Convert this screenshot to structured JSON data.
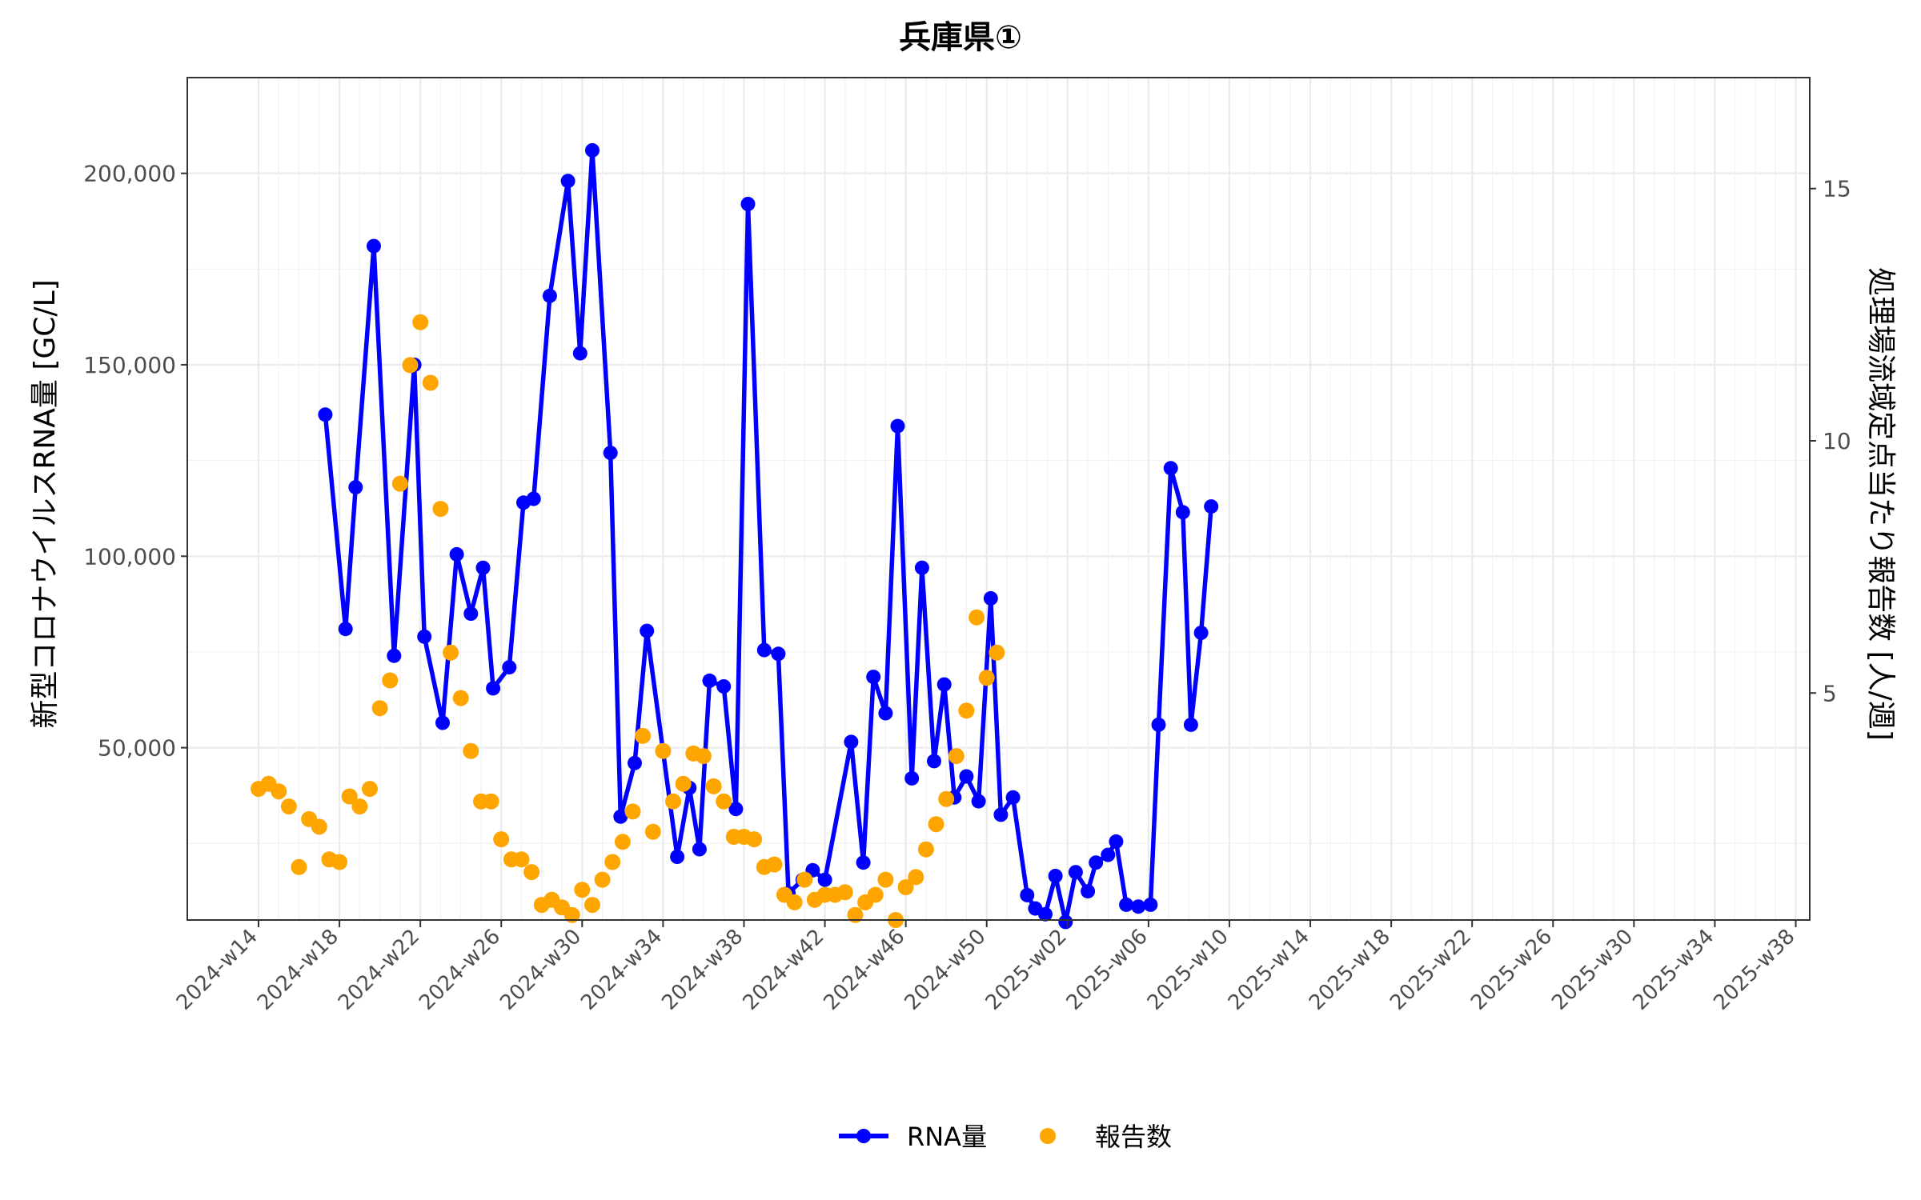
{
  "chart_data": {
    "type": "line",
    "title": "兵庫県①",
    "ylabel_left": "新型コロナウイルスRNA量 [GC/L]",
    "ylabel_right": "処理場流域定点当たり報告数 [人/週]",
    "ylim_left": [
      5000,
      225000
    ],
    "ylim_right": [
      0.5,
      17.2
    ],
    "yticks_left": [
      50000,
      100000,
      150000,
      200000
    ],
    "yticks_left_labels": [
      "50,000",
      "100,000",
      "150,000",
      "200,000"
    ],
    "yticks_right": [
      5,
      10,
      15
    ],
    "yticks_right_labels": [
      "5",
      "10",
      "15"
    ],
    "xticks": [
      "2024-w14",
      "2024-w18",
      "2024-w22",
      "2024-w26",
      "2024-w30",
      "2024-w34",
      "2024-w38",
      "2024-w42",
      "2024-w46",
      "2024-w50",
      "2025-w02",
      "2025-w06",
      "2025-w10",
      "2025-w14",
      "2025-w18",
      "2025-w22",
      "2025-w26",
      "2025-w30",
      "2025-w34",
      "2025-w38"
    ],
    "grid": true,
    "legend_position": "bottom",
    "series": [
      {
        "name": "RNA量",
        "type": "line",
        "axis": "left",
        "color": "#0000ff",
        "points": [
          [
            3.3,
            137000
          ],
          [
            4.3,
            81000
          ],
          [
            4.8,
            118000
          ],
          [
            5.7,
            181000
          ],
          [
            6.7,
            74000
          ],
          [
            7.7,
            150000
          ],
          [
            8.2,
            79000
          ],
          [
            9.1,
            56500
          ],
          [
            9.8,
            100500
          ],
          [
            10.5,
            85000
          ],
          [
            11.1,
            97000
          ],
          [
            11.6,
            65500
          ],
          [
            12.4,
            71000
          ],
          [
            13.1,
            114000
          ],
          [
            13.6,
            115000
          ],
          [
            14.4,
            168000
          ],
          [
            15.3,
            198000
          ],
          [
            15.9,
            153000
          ],
          [
            16.5,
            206000
          ],
          [
            17.4,
            127000
          ],
          [
            17.9,
            32000
          ],
          [
            18.6,
            46000
          ],
          [
            19.2,
            80500
          ],
          [
            20.7,
            21500
          ],
          [
            21.3,
            39500
          ],
          [
            21.8,
            23500
          ],
          [
            22.3,
            67500
          ],
          [
            23.0,
            66000
          ],
          [
            23.6,
            34000
          ],
          [
            24.2,
            192000
          ],
          [
            25.0,
            75500
          ],
          [
            25.7,
            74500
          ],
          [
            26.2,
            12000
          ],
          [
            26.9,
            15500
          ],
          [
            27.4,
            18000
          ],
          [
            28.0,
            15500
          ],
          [
            29.3,
            51500
          ],
          [
            29.9,
            20000
          ],
          [
            30.4,
            68500
          ],
          [
            31.0,
            59000
          ],
          [
            31.6,
            134000
          ],
          [
            32.3,
            42000
          ],
          [
            32.8,
            97000
          ],
          [
            33.4,
            46500
          ],
          [
            33.9,
            66500
          ],
          [
            34.4,
            37000
          ],
          [
            35.0,
            42500
          ],
          [
            35.6,
            36000
          ],
          [
            36.2,
            89000
          ],
          [
            36.7,
            32500
          ],
          [
            37.3,
            37000
          ],
          [
            38.0,
            11500
          ],
          [
            38.4,
            8000
          ],
          [
            38.9,
            6500
          ],
          [
            39.4,
            16500
          ],
          [
            39.9,
            4500
          ],
          [
            40.4,
            17500
          ],
          [
            41.0,
            12500
          ],
          [
            41.4,
            20000
          ],
          [
            42.0,
            22000
          ],
          [
            42.4,
            25500
          ],
          [
            42.9,
            9000
          ],
          [
            43.5,
            8500
          ],
          [
            44.1,
            9000
          ],
          [
            44.5,
            56000
          ],
          [
            45.1,
            123000
          ],
          [
            45.7,
            111500
          ],
          [
            46.1,
            56000
          ],
          [
            46.6,
            80000
          ],
          [
            47.1,
            113000
          ]
        ]
      },
      {
        "name": "報告数",
        "type": "scatter",
        "axis": "right",
        "color": "#ffa500",
        "points": [
          [
            0.0,
            3.1
          ],
          [
            0.5,
            3.2
          ],
          [
            1.0,
            3.05
          ],
          [
            1.5,
            2.75
          ],
          [
            2.0,
            1.55
          ],
          [
            2.5,
            2.5
          ],
          [
            3.0,
            2.35
          ],
          [
            3.5,
            1.7
          ],
          [
            4.0,
            1.65
          ],
          [
            4.5,
            2.95
          ],
          [
            5.0,
            2.75
          ],
          [
            5.5,
            3.1
          ],
          [
            6.0,
            4.7
          ],
          [
            6.5,
            5.25
          ],
          [
            7.0,
            9.15
          ],
          [
            7.5,
            11.5
          ],
          [
            8.0,
            12.35
          ],
          [
            8.5,
            11.15
          ],
          [
            9.0,
            8.65
          ],
          [
            9.5,
            5.8
          ],
          [
            10.0,
            4.9
          ],
          [
            10.5,
            3.85
          ],
          [
            11.0,
            2.85
          ],
          [
            11.5,
            2.85
          ],
          [
            12.0,
            2.1
          ],
          [
            12.5,
            1.7
          ],
          [
            13.0,
            1.7
          ],
          [
            13.5,
            1.45
          ],
          [
            14.0,
            0.8
          ],
          [
            14.5,
            0.9
          ],
          [
            15.0,
            0.75
          ],
          [
            15.5,
            0.6
          ],
          [
            16.0,
            1.1
          ],
          [
            16.5,
            0.8
          ],
          [
            17.0,
            1.3
          ],
          [
            17.5,
            1.65
          ],
          [
            18.0,
            2.05
          ],
          [
            18.5,
            2.65
          ],
          [
            19.0,
            4.15
          ],
          [
            19.5,
            2.25
          ],
          [
            20.0,
            3.85
          ],
          [
            20.5,
            2.85
          ],
          [
            21.0,
            3.2
          ],
          [
            21.5,
            3.8
          ],
          [
            22.0,
            3.75
          ],
          [
            22.5,
            3.15
          ],
          [
            23.0,
            2.85
          ],
          [
            23.5,
            2.15
          ],
          [
            24.0,
            2.15
          ],
          [
            24.5,
            2.1
          ],
          [
            25.0,
            1.55
          ],
          [
            25.5,
            1.6
          ],
          [
            26.0,
            1.0
          ],
          [
            26.5,
            0.85
          ],
          [
            27.0,
            1.3
          ],
          [
            27.5,
            0.9
          ],
          [
            28.0,
            1.0
          ],
          [
            28.5,
            1.0
          ],
          [
            29.0,
            1.05
          ],
          [
            29.5,
            0.6
          ],
          [
            30.0,
            0.85
          ],
          [
            30.5,
            1.0
          ],
          [
            31.0,
            1.3
          ],
          [
            31.5,
            0.5
          ],
          [
            32.0,
            1.15
          ],
          [
            32.5,
            1.35
          ],
          [
            33.0,
            1.9
          ],
          [
            33.5,
            2.4
          ],
          [
            34.0,
            2.9
          ],
          [
            34.5,
            3.75
          ],
          [
            35.0,
            4.65
          ],
          [
            35.5,
            6.5
          ],
          [
            36.0,
            5.3
          ],
          [
            36.5,
            5.8
          ]
        ]
      }
    ]
  }
}
